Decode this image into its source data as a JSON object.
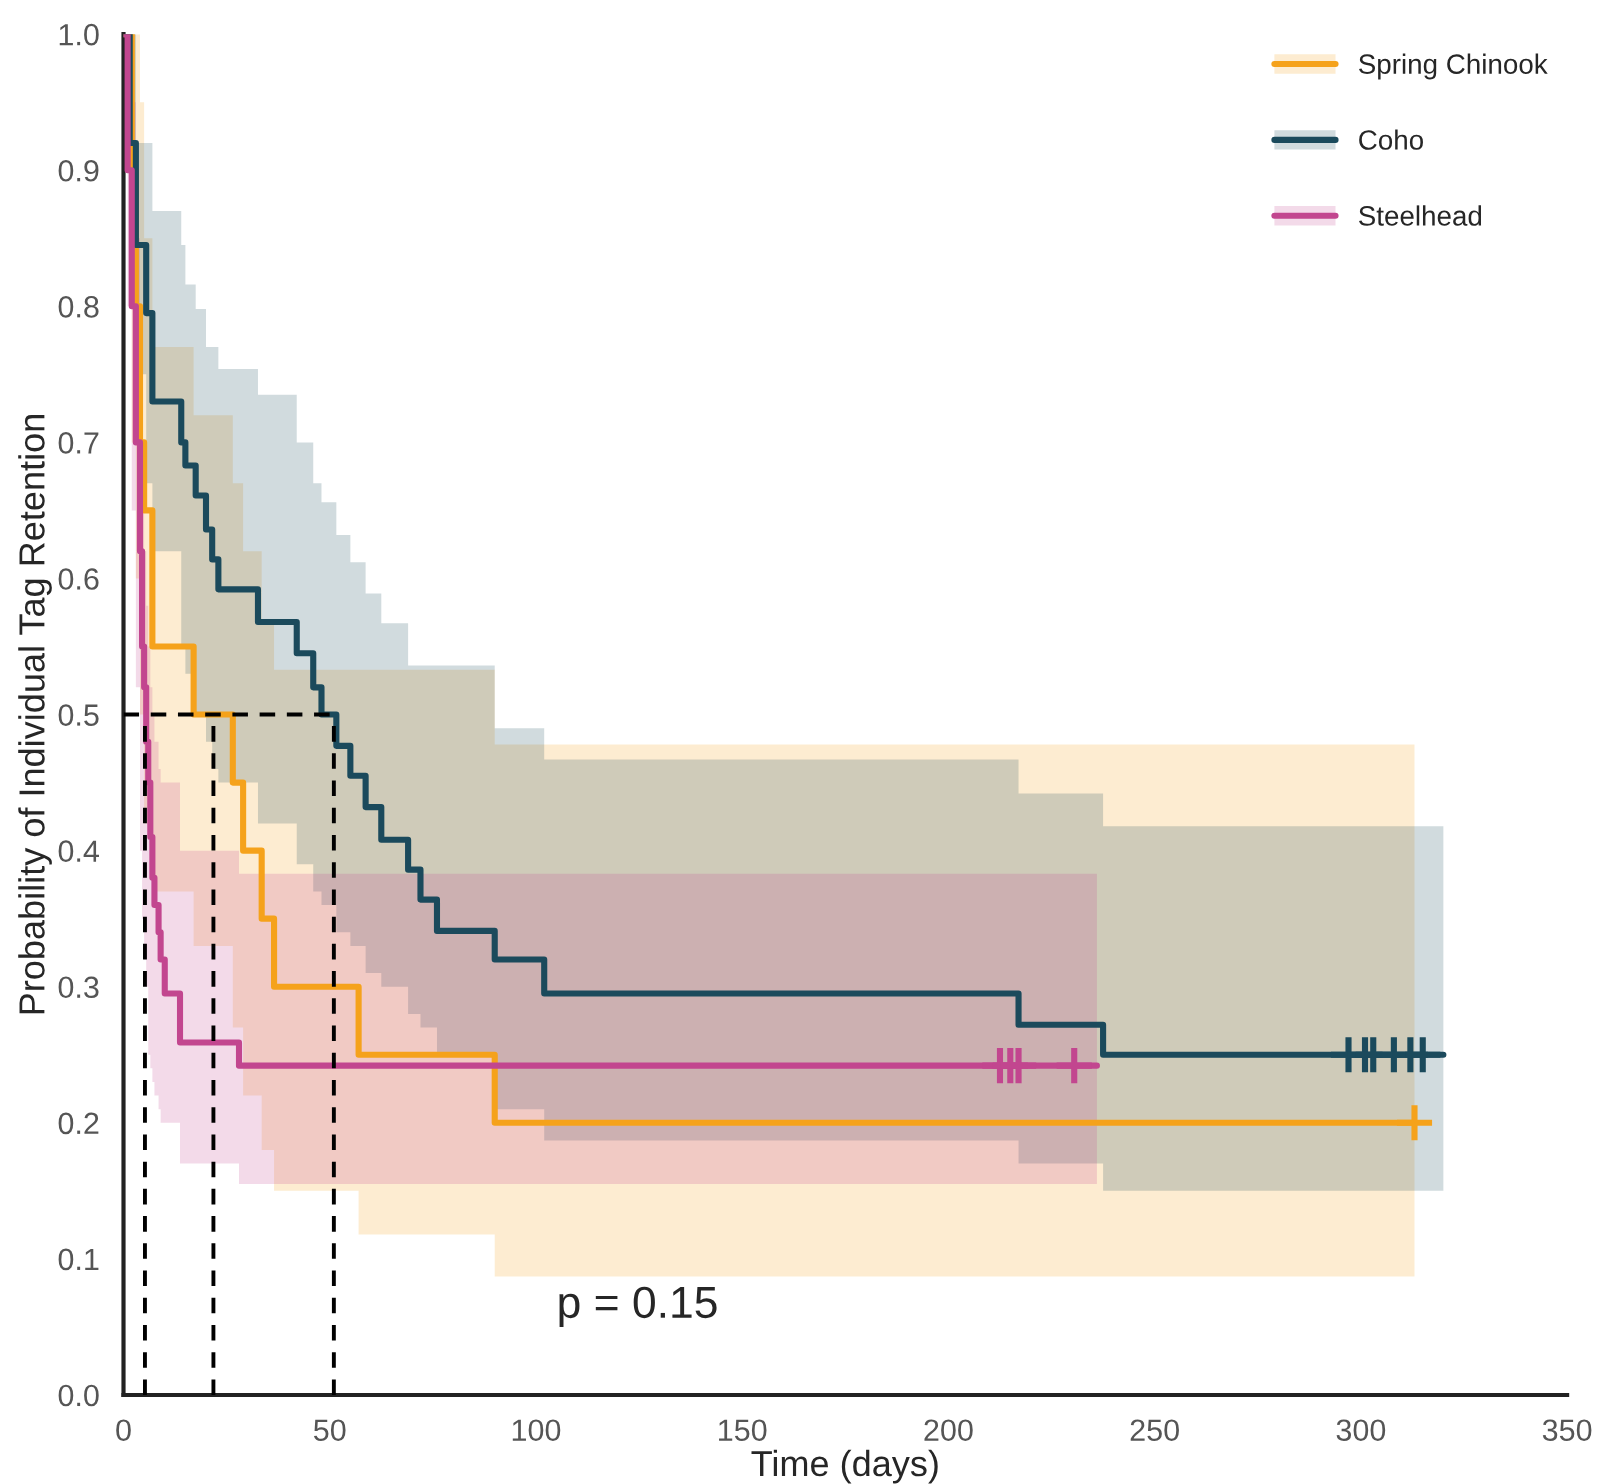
{
  "chart_data": {
    "type": "step",
    "xlabel": "Time (days)",
    "ylabel": "Probability of Individual Tag Retention",
    "xlim": [
      0,
      350
    ],
    "xticks": [
      0,
      50,
      100,
      150,
      200,
      250,
      300,
      350
    ],
    "ylim": [
      0,
      1.0
    ],
    "yticks": [
      {
        "value": 0,
        "label": "0.0"
      },
      0.1,
      0.2,
      0.3,
      0.4,
      0.5,
      0.6,
      0.7,
      0.8,
      0.9,
      {
        "value": 1.0,
        "label": "1.0"
      }
    ],
    "grid": false,
    "legend": "top right",
    "annotations": [
      "p = 0.15"
    ],
    "series": [
      {
        "name": "Spring Chinook",
        "color": "#f5a21b",
        "x": [
          0,
          2,
          3,
          4,
          5,
          7,
          17,
          26.5,
          29,
          33.5,
          36.5,
          57,
          90,
          313
        ],
        "values": [
          1.0,
          0.9,
          0.8,
          0.7,
          0.65,
          0.55,
          0.5,
          0.45,
          0.4,
          0.35,
          0.3,
          0.25,
          0.2,
          0.2
        ],
        "lower": [
          1.0,
          0.7,
          0.6,
          0.5,
          0.42,
          0.37,
          0.33,
          0.27,
          0.22,
          0.18,
          0.15,
          0.118,
          0.087,
          0.087
        ],
        "upper": [
          1.0,
          1.0,
          1.0,
          0.95,
          0.85,
          0.77,
          0.72,
          0.67,
          0.62,
          0.57,
          0.533,
          0.533,
          0.478,
          0.478
        ]
      },
      {
        "name": "Coho",
        "color": "#1b4a5c",
        "x": [
          0,
          1.5,
          3,
          5.5,
          7,
          14,
          15,
          17.5,
          20,
          21.5,
          23,
          32.6,
          42,
          46,
          48,
          51.6,
          55,
          58.7,
          62.5,
          69,
          72,
          76,
          90,
          102,
          217,
          237.5,
          320
        ],
        "values": [
          1.0,
          0.92,
          0.845,
          0.795,
          0.73,
          0.7,
          0.683,
          0.661,
          0.636,
          0.614,
          0.592,
          0.568,
          0.545,
          0.52,
          0.5,
          0.477,
          0.455,
          0.432,
          0.408,
          0.386,
          0.364,
          0.341,
          0.32,
          0.295,
          0.272,
          0.25,
          0.25
        ],
        "lower": [
          1.0,
          0.85,
          0.75,
          0.67,
          0.62,
          0.55,
          0.53,
          0.5,
          0.48,
          0.46,
          0.45,
          0.42,
          0.39,
          0.37,
          0.36,
          0.34,
          0.33,
          0.31,
          0.3,
          0.28,
          0.27,
          0.25,
          0.21,
          0.187,
          0.17,
          0.15,
          0.15
        ],
        "upper": [
          1.0,
          1.0,
          0.92,
          0.92,
          0.87,
          0.845,
          0.816,
          0.798,
          0.77,
          0.77,
          0.754,
          0.735,
          0.7,
          0.67,
          0.656,
          0.632,
          0.612,
          0.589,
          0.567,
          0.536,
          0.536,
          0.536,
          0.49,
          0.467,
          0.442,
          0.418,
          0.418
        ]
      },
      {
        "name": "Steelhead",
        "color": "#c2468f",
        "x": [
          0,
          1,
          2,
          3,
          4,
          4.5,
          5,
          5.5,
          6,
          6.5,
          7,
          7.5,
          8.5,
          9,
          10,
          13.7,
          28,
          236
        ],
        "values": [
          1.0,
          0.9,
          0.8,
          0.7,
          0.62,
          0.55,
          0.52,
          0.48,
          0.45,
          0.41,
          0.38,
          0.36,
          0.34,
          0.32,
          0.295,
          0.259,
          0.242,
          0.242
        ],
        "lower": [
          1.0,
          0.8,
          0.65,
          0.52,
          0.4,
          0.35,
          0.32,
          0.3,
          0.25,
          0.24,
          0.23,
          0.22,
          0.21,
          0.2,
          0.2,
          0.17,
          0.155,
          0.155
        ],
        "upper": [
          1.0,
          1.0,
          0.95,
          0.85,
          0.7,
          0.66,
          0.62,
          0.58,
          0.55,
          0.52,
          0.5,
          0.48,
          0.46,
          0.45,
          0.45,
          0.4,
          0.383,
          0.383
        ]
      },
      {
        "type": "scatter",
        "marker": "cross",
        "color": "#f5a21b",
        "x": [
          313
        ],
        "values": [
          0.2
        ]
      },
      {
        "type": "scatter",
        "marker": "cross",
        "color": "#1b4a5c",
        "x": [
          297,
          301,
          303,
          308,
          312,
          315
        ],
        "values": [
          0.25,
          0.25,
          0.25,
          0.25,
          0.25,
          0.25
        ]
      },
      {
        "type": "scatter",
        "marker": "cross",
        "color": "#c2468f",
        "x": [
          212.5,
          215,
          217,
          230.5
        ],
        "values": [
          0.242,
          0.242,
          0.242,
          0.242
        ]
      },
      {
        "type": "line",
        "line_style": "dashed",
        "color": "#000000",
        "x": [
          0,
          51
        ],
        "values": [
          0.5,
          0.5
        ]
      },
      {
        "type": "line",
        "line_style": "dashed",
        "color": "#000000",
        "x": [
          5.2,
          5.2
        ],
        "values": [
          0,
          0.5
        ]
      },
      {
        "type": "line",
        "line_style": "dashed",
        "color": "#000000",
        "x": [
          21.8,
          21.8
        ],
        "values": [
          0,
          0.5
        ]
      },
      {
        "type": "line",
        "line_style": "dashed",
        "color": "#000000",
        "x": [
          51,
          51
        ],
        "values": [
          0,
          0.5
        ]
      }
    ]
  }
}
